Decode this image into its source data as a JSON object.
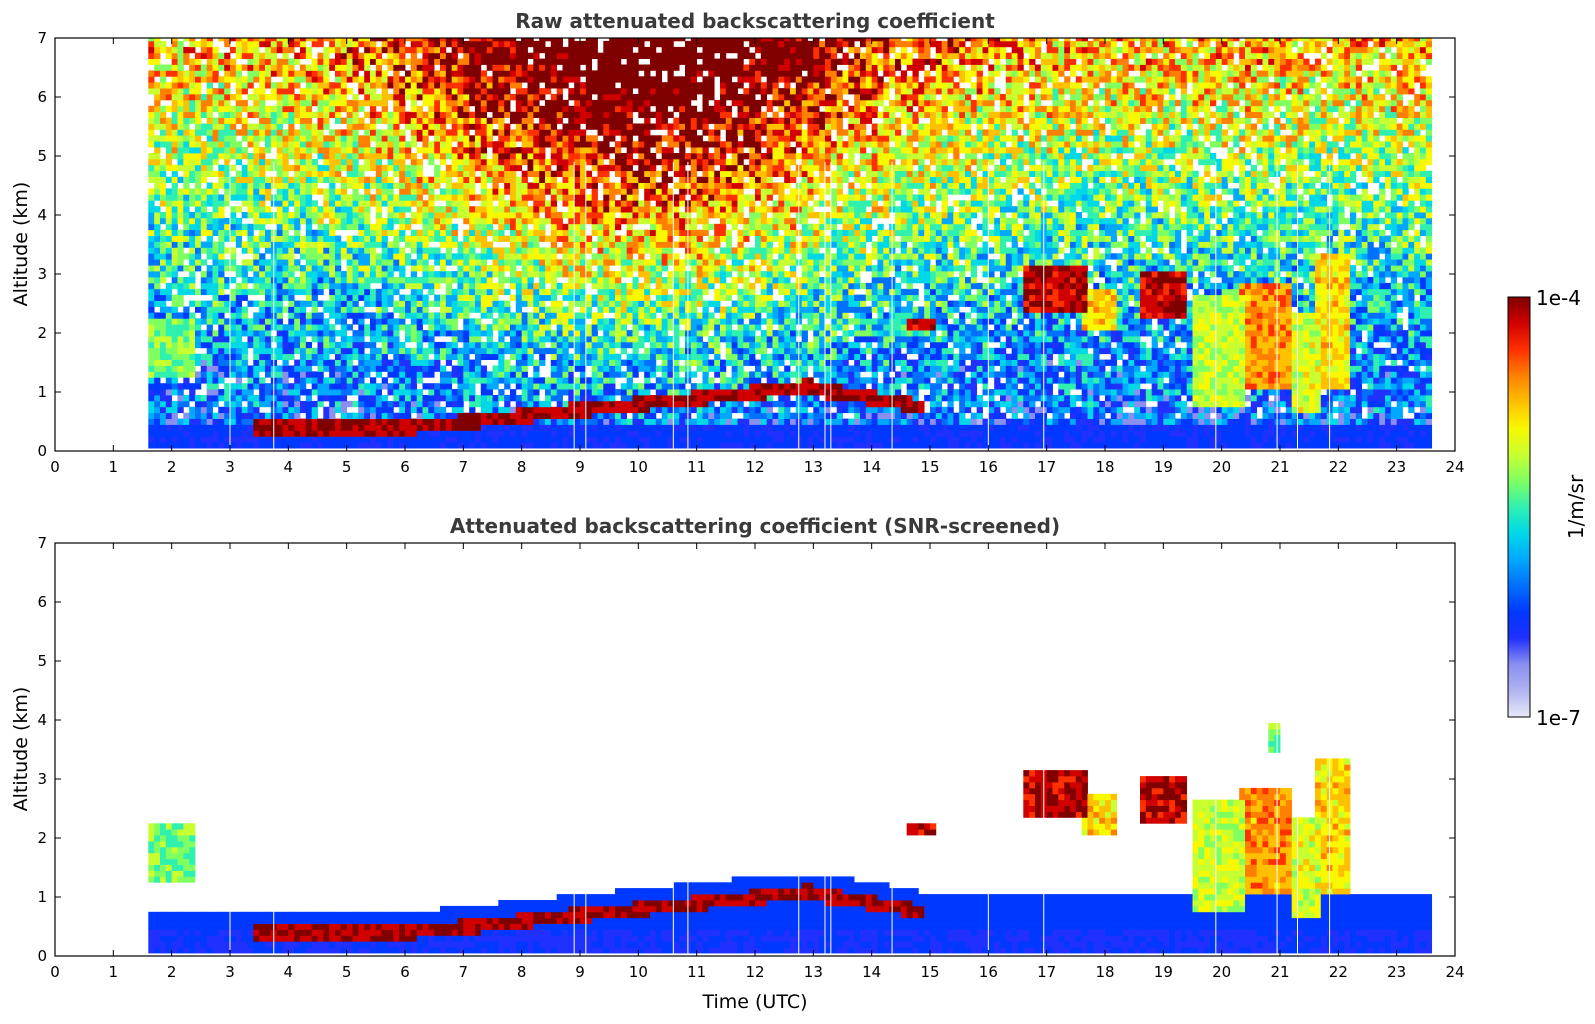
{
  "figure": {
    "xlabel": "Time (UTC)"
  },
  "colorbar": {
    "label": "1/m/sr",
    "max_label": "1e-4",
    "min_label": "1e-7",
    "colors": [
      "#e8e8f8",
      "#b0b4f0",
      "#8a8ff0",
      "#2030ff",
      "#0038ff",
      "#0070ff",
      "#00a8ff",
      "#00d8e8",
      "#30f0b0",
      "#80ff60",
      "#c8ff30",
      "#f8f800",
      "#ffc000",
      "#ff8000",
      "#ff3000",
      "#d00000",
      "#800000"
    ]
  },
  "chart_data": [
    {
      "type": "heatmap",
      "title": "Raw attenuated backscattering coefficient",
      "xlabel": "",
      "ylabel": "Altitude (km)",
      "xlim": [
        0,
        24
      ],
      "ylim": [
        0,
        7
      ],
      "xticks": [
        "0",
        "1",
        "2",
        "3",
        "4",
        "5",
        "6",
        "7",
        "8",
        "9",
        "10",
        "11",
        "12",
        "13",
        "14",
        "15",
        "16",
        "17",
        "18",
        "19",
        "20",
        "21",
        "22",
        "23",
        "24"
      ],
      "yticks": [
        "0",
        "1",
        "2",
        "3",
        "4",
        "5",
        "6",
        "7"
      ],
      "data_time_range": [
        1.55,
        23.55
      ],
      "clouds": [
        {
          "t": 16.9,
          "alt": 2.75
        },
        {
          "t": 19.0,
          "alt": 2.8
        },
        {
          "t": 20.9,
          "alt": 2.2
        },
        {
          "t": 21.9,
          "alt": 2.6
        },
        {
          "t": 15.0,
          "alt": 2.1
        }
      ]
    },
    {
      "type": "heatmap",
      "title": "Attenuated backscattering coefficient (SNR-screened)",
      "xlabel": "Time (UTC)",
      "ylabel": "Altitude (km)",
      "xlim": [
        0,
        24
      ],
      "ylim": [
        0,
        7
      ],
      "xticks": [
        "0",
        "1",
        "2",
        "3",
        "4",
        "5",
        "6",
        "7",
        "8",
        "9",
        "10",
        "11",
        "12",
        "13",
        "14",
        "15",
        "16",
        "17",
        "18",
        "19",
        "20",
        "21",
        "22",
        "23",
        "24"
      ],
      "yticks": [
        "0",
        "1",
        "2",
        "3",
        "4",
        "5",
        "6",
        "7"
      ],
      "data_time_range": [
        1.55,
        23.55
      ],
      "colorbar_range": [
        "1e-7",
        "1e-4"
      ]
    }
  ]
}
